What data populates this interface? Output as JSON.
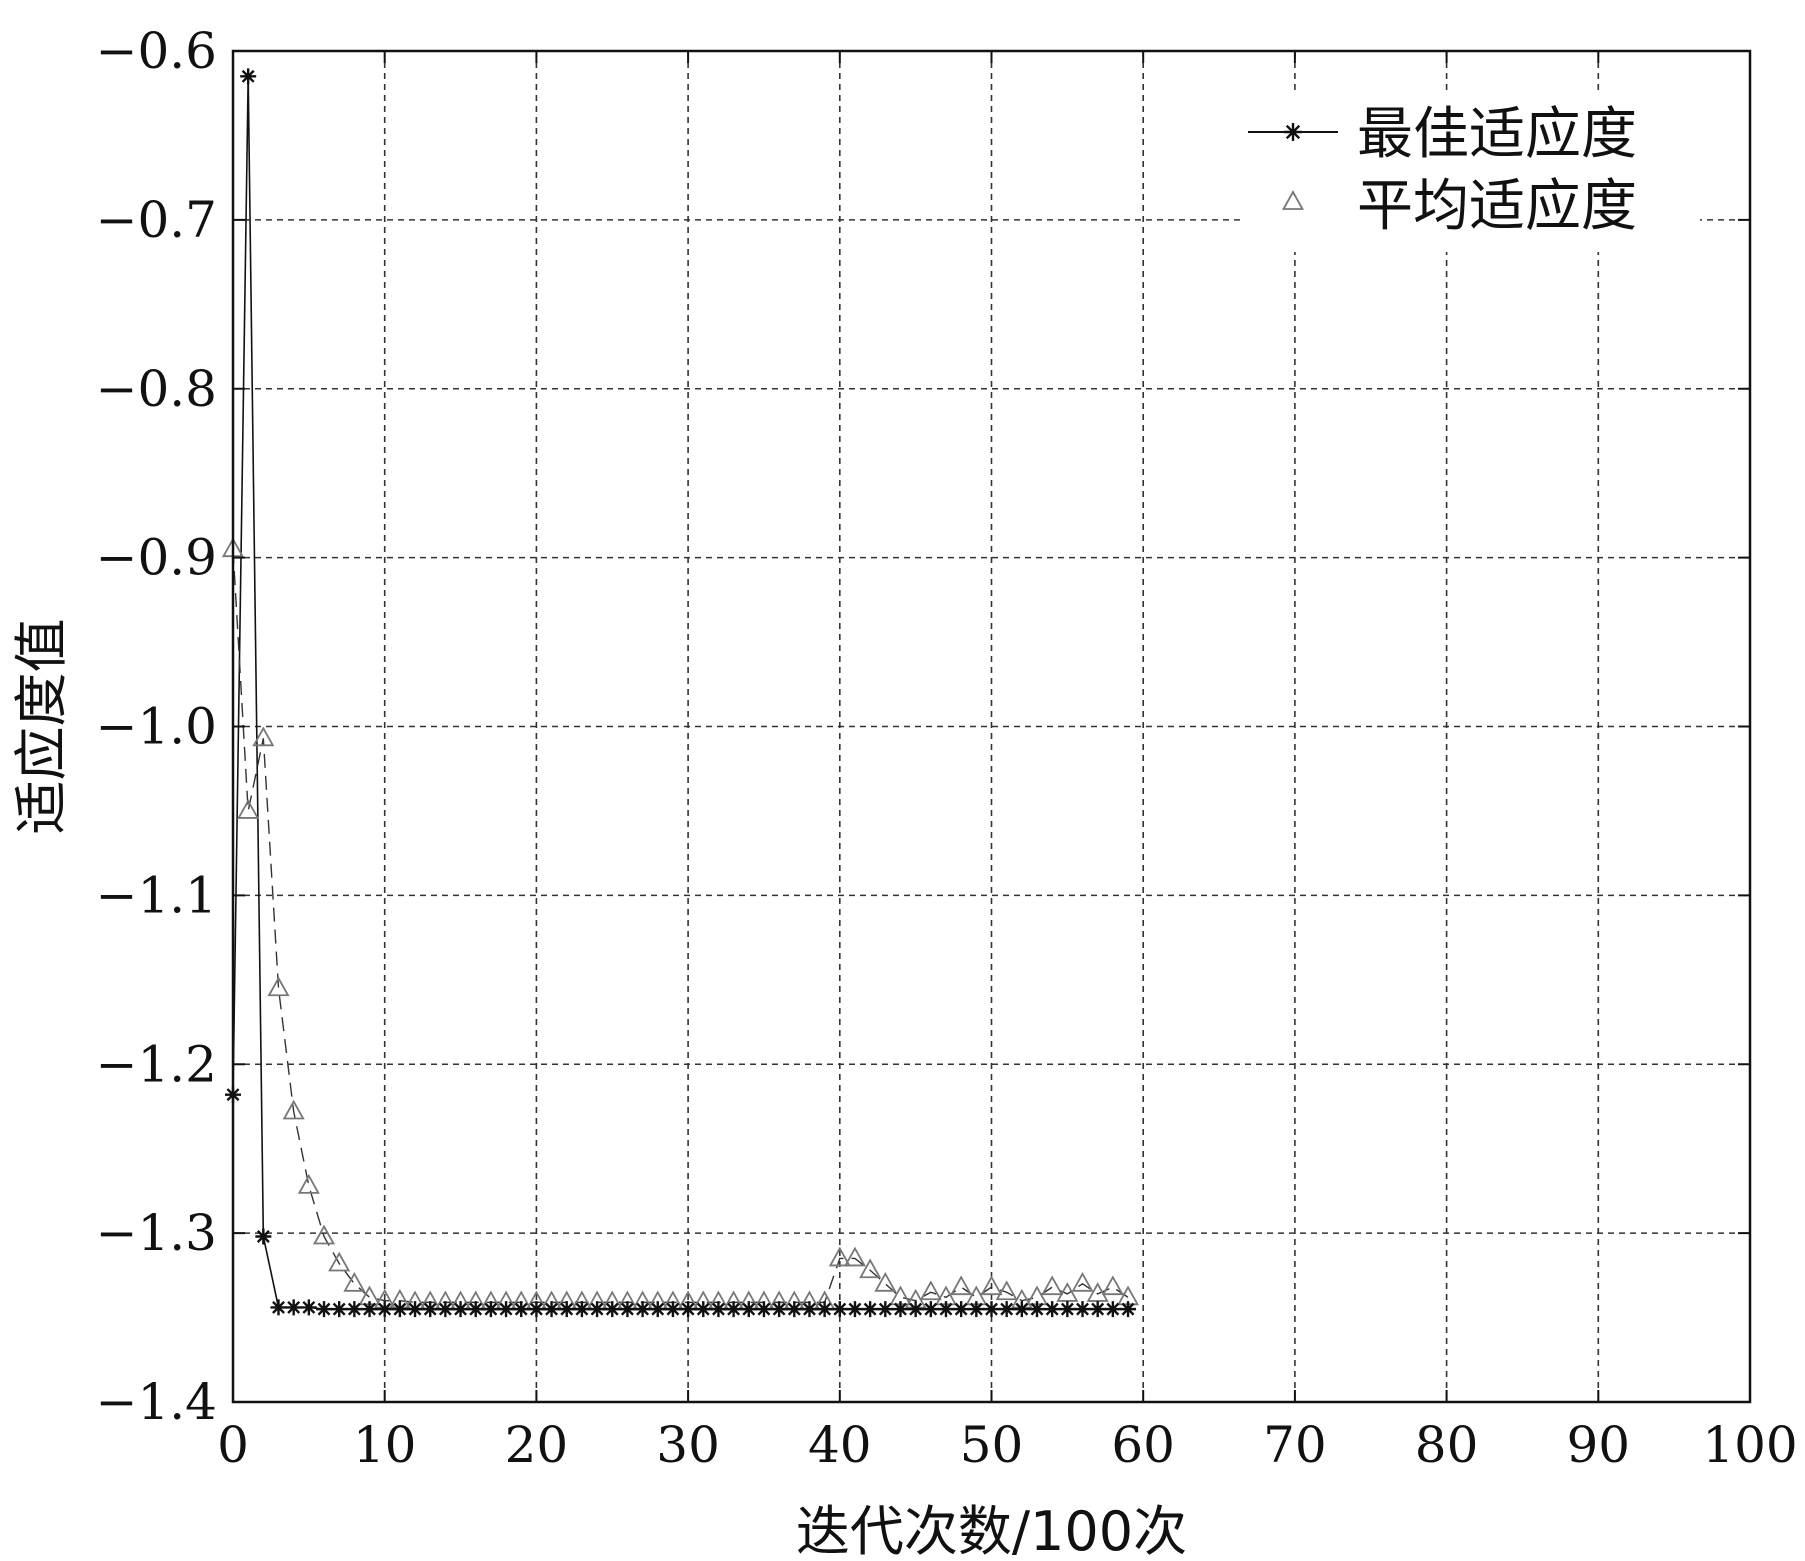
{
  "chart_data": {
    "type": "line",
    "xlabel": "迭代次数/100次",
    "ylabel": "适应度值",
    "xlim": [
      0,
      100
    ],
    "ylim": [
      -1.4,
      -0.6
    ],
    "xticks": [
      "0",
      "10",
      "20",
      "30",
      "40",
      "50",
      "60",
      "70",
      "80",
      "90",
      "100"
    ],
    "yticks": [
      "−0.6",
      "−0.7",
      "−0.8",
      "−0.9",
      "−1.0",
      "−1.1",
      "−1.2",
      "−1.3",
      "−1.4"
    ],
    "grid": true,
    "legend_position": "top-right",
    "series": [
      {
        "name": "最佳适应度",
        "marker": "asterisk",
        "color": "#111111",
        "x": [
          0,
          1,
          2,
          3,
          4,
          5,
          6,
          7,
          8,
          9,
          10,
          11,
          12,
          13,
          14,
          15,
          16,
          17,
          18,
          19,
          20,
          21,
          22,
          23,
          24,
          25,
          26,
          27,
          28,
          29,
          30,
          31,
          32,
          33,
          34,
          35,
          36,
          37,
          38,
          39,
          40,
          41,
          42,
          43,
          44,
          45,
          46,
          47,
          48,
          49,
          50,
          51,
          52,
          53,
          54,
          55,
          56,
          57,
          58,
          59
        ],
        "y": [
          -1.218,
          -0.615,
          -1.302,
          -1.344,
          -1.344,
          -1.344,
          -1.345,
          -1.345,
          -1.345,
          -1.345,
          -1.345,
          -1.345,
          -1.345,
          -1.345,
          -1.345,
          -1.345,
          -1.345,
          -1.345,
          -1.345,
          -1.345,
          -1.345,
          -1.345,
          -1.345,
          -1.345,
          -1.345,
          -1.345,
          -1.345,
          -1.345,
          -1.345,
          -1.345,
          -1.345,
          -1.345,
          -1.345,
          -1.345,
          -1.345,
          -1.345,
          -1.345,
          -1.345,
          -1.345,
          -1.345,
          -1.345,
          -1.345,
          -1.345,
          -1.345,
          -1.345,
          -1.345,
          -1.345,
          -1.345,
          -1.345,
          -1.345,
          -1.345,
          -1.345,
          -1.345,
          -1.345,
          -1.345,
          -1.345,
          -1.345,
          -1.345,
          -1.345,
          -1.345
        ]
      },
      {
        "name": "平均适应度",
        "marker": "triangle",
        "color": "#777777",
        "x": [
          0,
          1,
          2,
          3,
          4,
          5,
          6,
          7,
          8,
          9,
          10,
          11,
          12,
          13,
          14,
          15,
          16,
          17,
          18,
          19,
          20,
          21,
          22,
          23,
          24,
          25,
          26,
          27,
          28,
          29,
          30,
          31,
          32,
          33,
          34,
          35,
          36,
          37,
          38,
          39,
          40,
          41,
          42,
          43,
          44,
          45,
          46,
          47,
          48,
          49,
          50,
          51,
          52,
          53,
          54,
          55,
          56,
          57,
          58,
          59
        ],
        "y": [
          -0.895,
          -1.05,
          -1.007,
          -1.155,
          -1.228,
          -1.272,
          -1.302,
          -1.318,
          -1.33,
          -1.338,
          -1.34,
          -1.34,
          -1.341,
          -1.341,
          -1.341,
          -1.341,
          -1.341,
          -1.341,
          -1.341,
          -1.341,
          -1.341,
          -1.341,
          -1.341,
          -1.341,
          -1.341,
          -1.341,
          -1.341,
          -1.341,
          -1.341,
          -1.341,
          -1.341,
          -1.341,
          -1.341,
          -1.341,
          -1.341,
          -1.341,
          -1.341,
          -1.341,
          -1.341,
          -1.341,
          -1.315,
          -1.315,
          -1.322,
          -1.33,
          -1.338,
          -1.34,
          -1.335,
          -1.338,
          -1.332,
          -1.338,
          -1.332,
          -1.335,
          -1.34,
          -1.338,
          -1.332,
          -1.336,
          -1.33,
          -1.336,
          -1.332,
          -1.338
        ]
      }
    ]
  }
}
